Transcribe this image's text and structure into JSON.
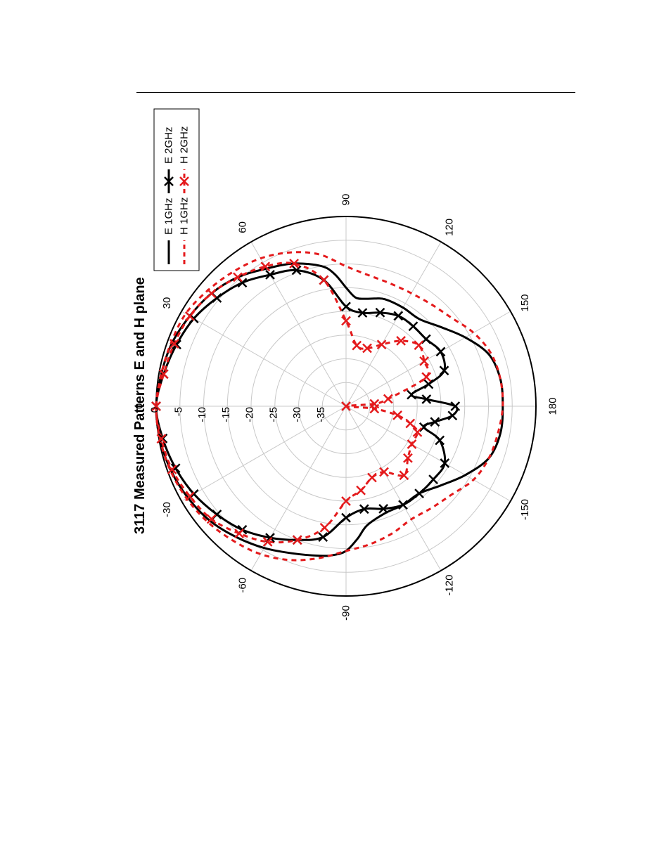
{
  "chart_data": {
    "type": "polar",
    "title": "3117 Measured Patterns E and H plane",
    "orientation": "rotated 90 degrees counter-clockwise on page",
    "radial_axis": {
      "unit": "dB",
      "range": [
        -40,
        0
      ],
      "tick_labels": [
        "0",
        "-5",
        "-10",
        "-15",
        "-20",
        "-25",
        "-30",
        "-35"
      ]
    },
    "angular_axis": {
      "unit": "degrees",
      "tick_labels": [
        "0",
        "30",
        "60",
        "90",
        "120",
        "150",
        "180",
        "-150",
        "-120",
        "-90",
        "-60",
        "-30"
      ]
    },
    "legend": {
      "placement": "top-right",
      "entries": [
        "E 1GHz",
        "E 2GHz",
        "H 1GHz",
        "H 2GHz"
      ]
    },
    "series": [
      {
        "name": "E 1GHz",
        "color": "#000000",
        "dashed": false,
        "marker": "none",
        "points": [
          [
            0,
            0
          ],
          [
            10,
            -0.5
          ],
          [
            20,
            -1
          ],
          [
            30,
            -2
          ],
          [
            40,
            -3
          ],
          [
            50,
            -4.5
          ],
          [
            60,
            -6.5
          ],
          [
            70,
            -8
          ],
          [
            80,
            -10
          ],
          [
            85,
            -12
          ],
          [
            90,
            -15
          ],
          [
            95,
            -17
          ],
          [
            100,
            -17
          ],
          [
            105,
            -16.5
          ],
          [
            110,
            -16
          ],
          [
            120,
            -16
          ],
          [
            130,
            -16
          ],
          [
            140,
            -14
          ],
          [
            150,
            -11
          ],
          [
            160,
            -8
          ],
          [
            170,
            -7
          ],
          [
            180,
            -7
          ],
          [
            -170,
            -7
          ],
          [
            -160,
            -8
          ],
          [
            -150,
            -11
          ],
          [
            -140,
            -14
          ],
          [
            -130,
            -16
          ],
          [
            -120,
            -16
          ],
          [
            -110,
            -16
          ],
          [
            -100,
            -14.5
          ],
          [
            -95,
            -12
          ],
          [
            -90,
            -9.5
          ],
          [
            -85,
            -8.5
          ],
          [
            -80,
            -8
          ],
          [
            -70,
            -7
          ],
          [
            -60,
            -5.5
          ],
          [
            -50,
            -4
          ],
          [
            -40,
            -2.5
          ],
          [
            -30,
            -1.5
          ],
          [
            -20,
            -0.7
          ],
          [
            -10,
            -0.2
          ],
          [
            0,
            0
          ]
        ]
      },
      {
        "name": "E 2GHz",
        "color": "#000000",
        "dashed": false,
        "marker": "x",
        "points": [
          [
            0,
            0
          ],
          [
            10,
            -1
          ],
          [
            20,
            -2
          ],
          [
            30,
            -3
          ],
          [
            40,
            -4.5
          ],
          [
            50,
            -6
          ],
          [
            60,
            -8
          ],
          [
            70,
            -9.5
          ],
          [
            80,
            -13
          ],
          [
            90,
            -19
          ],
          [
            100,
            -20
          ],
          [
            110,
            -19
          ],
          [
            120,
            -18
          ],
          [
            130,
            -18
          ],
          [
            140,
            -18
          ],
          [
            150,
            -17
          ],
          [
            160,
            -18
          ],
          [
            165,
            -22
          ],
          [
            170,
            -26
          ],
          [
            175,
            -23
          ],
          [
            180,
            -17
          ],
          [
            -175,
            -17.5
          ],
          [
            -170,
            -21
          ],
          [
            -165,
            -23
          ],
          [
            -160,
            -19
          ],
          [
            -150,
            -16
          ],
          [
            -140,
            -16
          ],
          [
            -130,
            -16
          ],
          [
            -120,
            -16
          ],
          [
            -110,
            -17
          ],
          [
            -100,
            -18
          ],
          [
            -90,
            -16.5
          ],
          [
            -80,
            -12
          ],
          [
            -70,
            -10
          ],
          [
            -60,
            -8
          ],
          [
            -50,
            -6
          ],
          [
            -40,
            -4.5
          ],
          [
            -30,
            -3
          ],
          [
            -20,
            -1.8
          ],
          [
            -10,
            -0.8
          ],
          [
            0,
            0
          ]
        ]
      },
      {
        "name": "H 1GHz",
        "color": "#e41a1c",
        "dashed": true,
        "marker": "none",
        "points": [
          [
            0,
            0
          ],
          [
            10,
            -0.5
          ],
          [
            20,
            -0.8
          ],
          [
            30,
            -1
          ],
          [
            40,
            -2
          ],
          [
            50,
            -3
          ],
          [
            60,
            -4
          ],
          [
            70,
            -5.5
          ],
          [
            80,
            -7.5
          ],
          [
            90,
            -10.5
          ],
          [
            100,
            -12
          ],
          [
            110,
            -12.5
          ],
          [
            120,
            -12.5
          ],
          [
            130,
            -12
          ],
          [
            140,
            -11
          ],
          [
            150,
            -9
          ],
          [
            160,
            -7.5
          ],
          [
            170,
            -7
          ],
          [
            180,
            -7
          ],
          [
            -170,
            -7.5
          ],
          [
            -160,
            -8
          ],
          [
            -150,
            -9
          ],
          [
            -140,
            -11
          ],
          [
            -130,
            -12
          ],
          [
            -120,
            -12.5
          ],
          [
            -110,
            -11.5
          ],
          [
            -100,
            -10.5
          ],
          [
            -90,
            -9.5
          ],
          [
            -80,
            -7.5
          ],
          [
            -70,
            -5.5
          ],
          [
            -60,
            -4
          ],
          [
            -50,
            -3
          ],
          [
            -40,
            -2
          ],
          [
            -30,
            -1.2
          ],
          [
            -20,
            -0.6
          ],
          [
            -10,
            -0.2
          ],
          [
            0,
            0
          ]
        ]
      },
      {
        "name": "H 2GHz",
        "color": "#e41a1c",
        "dashed": true,
        "marker": "x",
        "points": [
          [
            0,
            0
          ],
          [
            10,
            -1
          ],
          [
            20,
            -1.5
          ],
          [
            30,
            -2
          ],
          [
            40,
            -3
          ],
          [
            50,
            -4.5
          ],
          [
            60,
            -6
          ],
          [
            70,
            -8
          ],
          [
            80,
            -13
          ],
          [
            90,
            -22
          ],
          [
            100,
            -27
          ],
          [
            110,
            -27
          ],
          [
            120,
            -25
          ],
          [
            130,
            -22
          ],
          [
            140,
            -20
          ],
          [
            150,
            -21
          ],
          [
            160,
            -22
          ],
          [
            170,
            -31
          ],
          [
            175,
            -34
          ],
          [
            180,
            -40
          ],
          [
            -175,
            -34
          ],
          [
            -170,
            -29
          ],
          [
            -165,
            -26
          ],
          [
            -160,
            -24
          ],
          [
            -150,
            -24
          ],
          [
            -140,
            -23
          ],
          [
            -130,
            -21
          ],
          [
            -120,
            -24
          ],
          [
            -110,
            -24
          ],
          [
            -100,
            -22
          ],
          [
            -90,
            -20
          ],
          [
            -80,
            -14
          ],
          [
            -70,
            -10
          ],
          [
            -60,
            -7
          ],
          [
            -50,
            -5
          ],
          [
            -40,
            -3
          ],
          [
            -30,
            -2
          ],
          [
            -20,
            -1
          ],
          [
            -10,
            -0.5
          ],
          [
            0,
            0
          ]
        ]
      }
    ]
  }
}
